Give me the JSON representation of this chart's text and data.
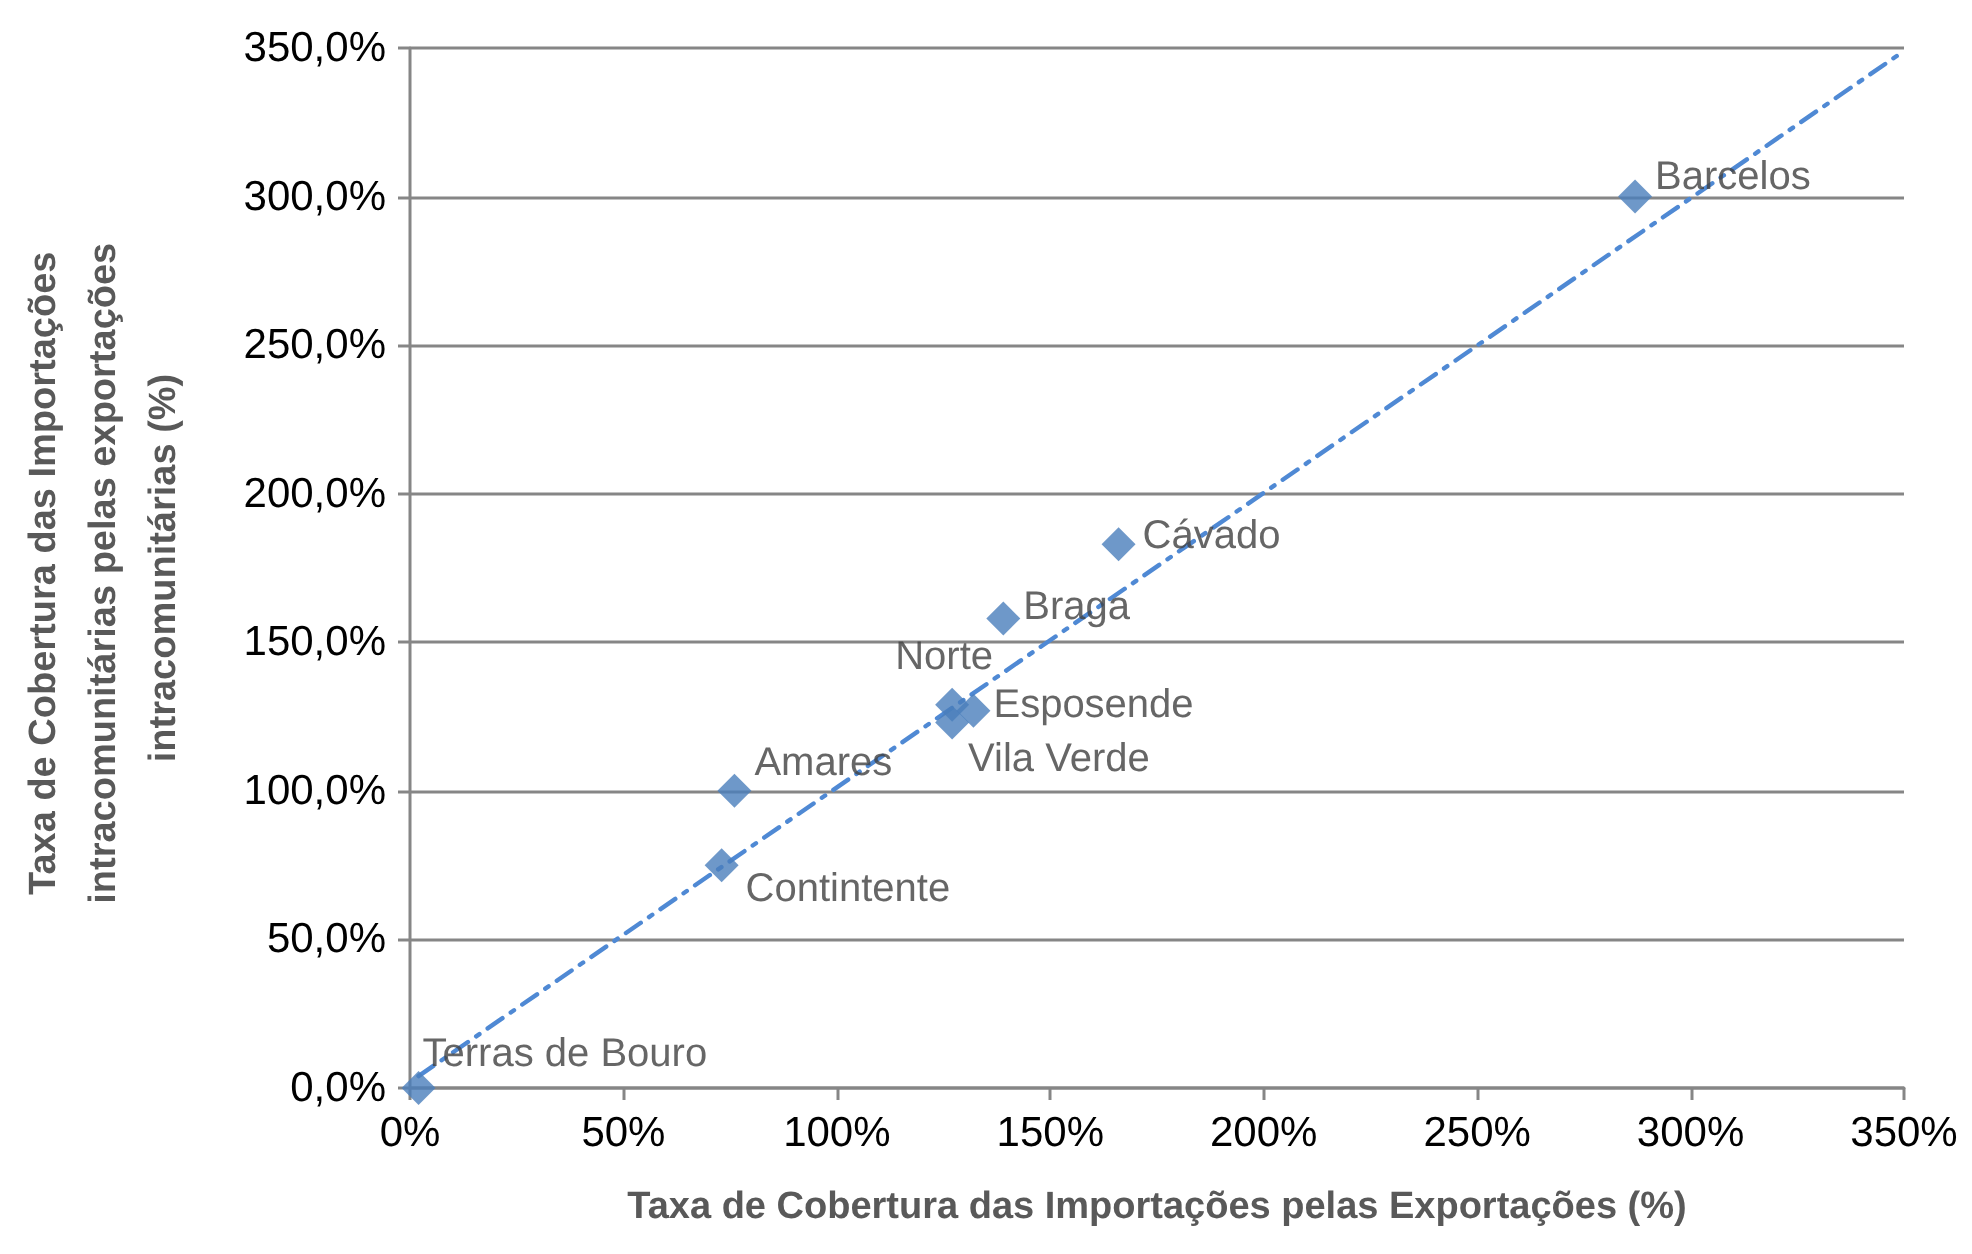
{
  "chart_data": {
    "type": "scatter",
    "xlabel": "Taxa de Cobertura das Importações pelas Exportações (%)",
    "ylabel": "Taxa de Cobertura das Importações intracomunitárias pelas exportações intracomunitárias (%)",
    "x": [
      287,
      166,
      139,
      127,
      132,
      127,
      76,
      73,
      2
    ],
    "series": [
      {
        "color": "#4a7ebb",
        "values": [
          300,
          183,
          158,
          129,
          127,
          123,
          100,
          75,
          0
        ]
      },
      {
        "type": "line",
        "color": "#4f89d4",
        "x": [
          2,
          350
        ],
        "values": [
          4,
          349
        ],
        "marker": "none",
        "line_style": "dashed"
      }
    ],
    "annotations": [
      {
        "text": "Barcelos",
        "x": 287,
        "y": 300
      },
      {
        "text": "Cávado",
        "x": 166,
        "y": 183
      },
      {
        "text": "Braga",
        "x": 139,
        "y": 158
      },
      {
        "text": "Norte",
        "x": 127,
        "y": 129
      },
      {
        "text": "Esposende",
        "x": 132,
        "y": 127
      },
      {
        "text": "Vila Verde",
        "x": 127,
        "y": 123
      },
      {
        "text": "Amares",
        "x": 76,
        "y": 100
      },
      {
        "text": "Contintente",
        "x": 73,
        "y": 75
      },
      {
        "text": "Terras de Bouro",
        "x": 2,
        "y": 0
      }
    ],
    "xlim": [
      0,
      350
    ],
    "xticks": [
      {
        "value": 0,
        "label": "0%"
      },
      {
        "value": 50,
        "label": "50%"
      },
      {
        "value": 100,
        "label": "100%"
      },
      {
        "value": 150,
        "label": "150%"
      },
      {
        "value": 200,
        "label": "200%"
      },
      {
        "value": 250,
        "label": "250%"
      },
      {
        "value": 300,
        "label": "300%"
      },
      {
        "value": 350,
        "label": "350%"
      }
    ],
    "ylim": [
      0,
      350
    ],
    "yticks": [
      {
        "value": 0,
        "label": "0,0%"
      },
      {
        "value": 50,
        "label": "50,0%"
      },
      {
        "value": 100,
        "label": "100,0%"
      },
      {
        "value": 150,
        "label": "150,0%"
      },
      {
        "value": 200,
        "label": "200,0%"
      },
      {
        "value": 250,
        "label": "250,0%"
      },
      {
        "value": 300,
        "label": "300,0%"
      },
      {
        "value": 350,
        "label": "350,0%"
      }
    ],
    "grid": "y",
    "marker": "diamond"
  }
}
